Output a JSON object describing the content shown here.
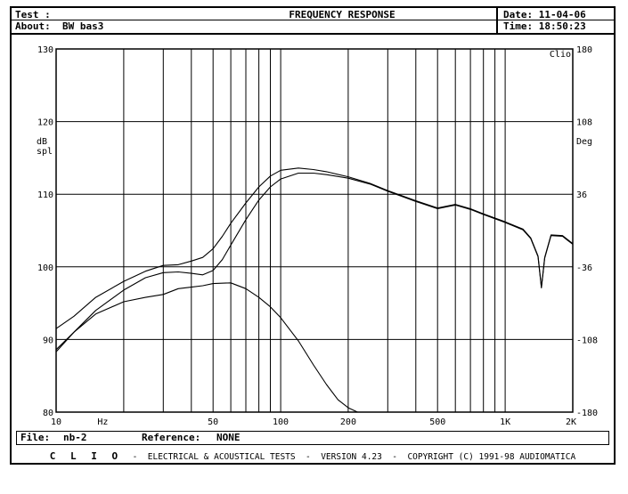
{
  "header": {
    "test_label": "Test :",
    "title": "FREQUENCY RESPONSE",
    "about_label": "About:",
    "about_value": "BW bas3",
    "date_label": "Date:",
    "date_value": "11-04-06",
    "time_label": "Time:",
    "time_value": "18:50:23"
  },
  "footer": {
    "file_label": "File:",
    "file_value": "nb-2",
    "reference_label": "Reference:",
    "reference_value": "NONE",
    "brand": "C L I O",
    "banner": "-  ELECTRICAL & ACOUSTICAL TESTS  -  VERSION 4.23  -  COPYRIGHT (C) 1991-98 AUDIOMATICA"
  },
  "chart_data": {
    "type": "line",
    "title": "FREQUENCY RESPONSE",
    "corner_label": "Clio",
    "xlabel": "Hz",
    "ylabel": "dB spl",
    "y2label": "Deg",
    "xscale": "log",
    "xlim": [
      10,
      2000
    ],
    "ylim": [
      80,
      130
    ],
    "y2lim": [
      -180,
      180
    ],
    "grid": true,
    "x_tick_labels": [
      "10",
      "50",
      "100",
      "200",
      "500",
      "1K",
      "2K"
    ],
    "x_tick_values": [
      10,
      50,
      100,
      200,
      500,
      1000,
      2000
    ],
    "y_ticks": [
      80,
      90,
      100,
      110,
      120,
      130
    ],
    "y2_ticks": [
      -180,
      -108,
      -36,
      36,
      108,
      180
    ],
    "series": [
      {
        "x": [
          10,
          12,
          15,
          20,
          25,
          30,
          35,
          40,
          45,
          50,
          55,
          60,
          70,
          80,
          90,
          100,
          120,
          140,
          160,
          200,
          250,
          300,
          400,
          500,
          600,
          700,
          800,
          1000,
          1200,
          1300,
          1400,
          1450,
          1500,
          1600,
          1800,
          2000
        ],
        "values": [
          91.5,
          93.2,
          95.8,
          98.0,
          99.4,
          100.2,
          100.3,
          100.8,
          101.3,
          102.5,
          104.2,
          106.0,
          108.8,
          111.0,
          112.5,
          113.3,
          113.6,
          113.4,
          113.1,
          112.4,
          111.5,
          110.5,
          109.1,
          108.1,
          108.6,
          108.0,
          107.3,
          106.2,
          105.2,
          104.0,
          101.5,
          97.2,
          101.3,
          104.4,
          104.3,
          103.2
        ]
      },
      {
        "x": [
          10,
          12,
          15,
          20,
          25,
          30,
          35,
          40,
          45,
          50,
          55,
          60,
          70,
          80,
          90,
          100,
          120,
          140,
          160,
          200,
          250,
          300,
          400,
          500,
          600,
          700,
          800,
          1000,
          1200,
          1300,
          1400,
          1450,
          1500,
          1600,
          1800,
          2000
        ],
        "values": [
          88.3,
          91.0,
          94.0,
          96.8,
          98.5,
          99.2,
          99.3,
          99.1,
          98.9,
          99.5,
          101.0,
          103.0,
          106.5,
          109.2,
          111.0,
          112.1,
          112.9,
          112.9,
          112.7,
          112.2,
          111.4,
          110.4,
          109.0,
          108.0,
          108.5,
          107.9,
          107.2,
          106.1,
          105.1,
          103.9,
          101.4,
          97.1,
          101.2,
          104.3,
          104.2,
          103.1
        ]
      },
      {
        "x": [
          10,
          12,
          15,
          20,
          25,
          30,
          35,
          40,
          45,
          50,
          60,
          70,
          80,
          90,
          100,
          120,
          140,
          160,
          180,
          200,
          220
        ],
        "values": [
          88.6,
          91.0,
          93.5,
          95.2,
          95.8,
          96.2,
          97.0,
          97.2,
          97.4,
          97.7,
          97.8,
          97.0,
          95.8,
          94.5,
          93.0,
          89.8,
          86.5,
          83.8,
          81.7,
          80.6,
          80.0
        ]
      }
    ]
  }
}
